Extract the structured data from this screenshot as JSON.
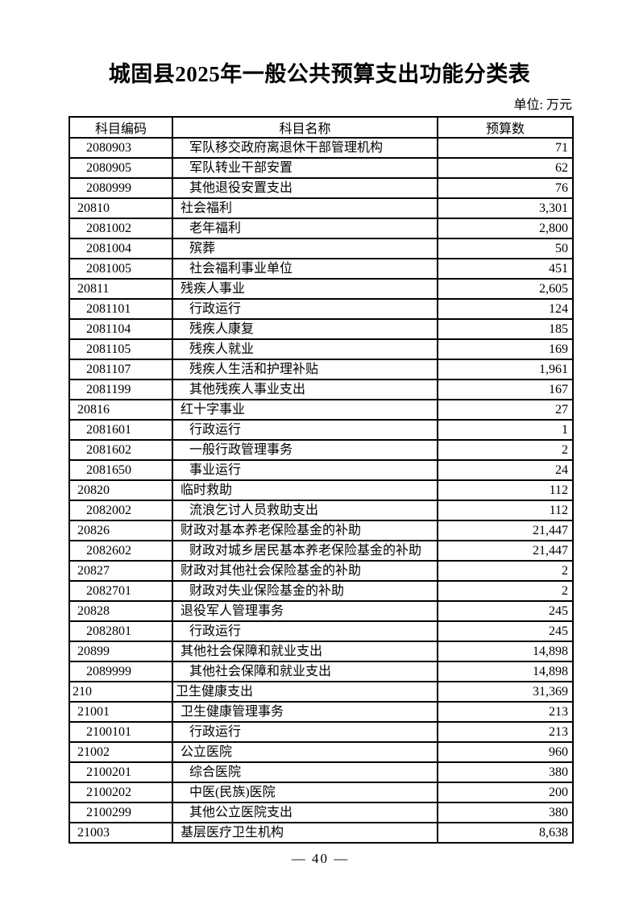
{
  "page": {
    "title": "城固县2025年一般公共预算支出功能分类表",
    "unit_label": "单位: 万元",
    "page_number": "— 40 —"
  },
  "table": {
    "headers": [
      "科目编码",
      "科目名称",
      "预算数"
    ],
    "rows": [
      {
        "code": "2080903",
        "name": "军队移交政府离退休干部管理机构",
        "value": "71",
        "level": 2
      },
      {
        "code": "2080905",
        "name": "军队转业干部安置",
        "value": "62",
        "level": 2
      },
      {
        "code": "2080999",
        "name": "其他退役安置支出",
        "value": "76",
        "level": 2
      },
      {
        "code": "20810",
        "name": "社会福利",
        "value": "3,301",
        "level": 1
      },
      {
        "code": "2081002",
        "name": "老年福利",
        "value": "2,800",
        "level": 2
      },
      {
        "code": "2081004",
        "name": "殡葬",
        "value": "50",
        "level": 2
      },
      {
        "code": "2081005",
        "name": "社会福利事业单位",
        "value": "451",
        "level": 2
      },
      {
        "code": "20811",
        "name": "残疾人事业",
        "value": "2,605",
        "level": 1
      },
      {
        "code": "2081101",
        "name": "行政运行",
        "value": "124",
        "level": 2
      },
      {
        "code": "2081104",
        "name": "残疾人康复",
        "value": "185",
        "level": 2
      },
      {
        "code": "2081105",
        "name": "残疾人就业",
        "value": "169",
        "level": 2
      },
      {
        "code": "2081107",
        "name": "残疾人生活和护理补贴",
        "value": "1,961",
        "level": 2
      },
      {
        "code": "2081199",
        "name": "其他残疾人事业支出",
        "value": "167",
        "level": 2
      },
      {
        "code": "20816",
        "name": "红十字事业",
        "value": "27",
        "level": 1
      },
      {
        "code": "2081601",
        "name": "行政运行",
        "value": "1",
        "level": 2
      },
      {
        "code": "2081602",
        "name": "一般行政管理事务",
        "value": "2",
        "level": 2
      },
      {
        "code": "2081650",
        "name": "事业运行",
        "value": "24",
        "level": 2
      },
      {
        "code": "20820",
        "name": "临时救助",
        "value": "112",
        "level": 1
      },
      {
        "code": "2082002",
        "name": "流浪乞讨人员救助支出",
        "value": "112",
        "level": 2
      },
      {
        "code": "20826",
        "name": "财政对基本养老保险基金的补助",
        "value": "21,447",
        "level": 1
      },
      {
        "code": "2082602",
        "name": "财政对城乡居民基本养老保险基金的补助",
        "value": "21,447",
        "level": 2
      },
      {
        "code": "20827",
        "name": "财政对其他社会保险基金的补助",
        "value": "2",
        "level": 1
      },
      {
        "code": "2082701",
        "name": "财政对失业保险基金的补助",
        "value": "2",
        "level": 2
      },
      {
        "code": "20828",
        "name": "退役军人管理事务",
        "value": "245",
        "level": 1
      },
      {
        "code": "2082801",
        "name": "行政运行",
        "value": "245",
        "level": 2
      },
      {
        "code": "20899",
        "name": "其他社会保障和就业支出",
        "value": "14,898",
        "level": 1
      },
      {
        "code": "2089999",
        "name": "其他社会保障和就业支出",
        "value": "14,898",
        "level": 2
      },
      {
        "code": "210",
        "name": "卫生健康支出",
        "value": "31,369",
        "level": 0
      },
      {
        "code": "21001",
        "name": "卫生健康管理事务",
        "value": "213",
        "level": 1
      },
      {
        "code": "2100101",
        "name": "行政运行",
        "value": "213",
        "level": 2
      },
      {
        "code": "21002",
        "name": "公立医院",
        "value": "960",
        "level": 1
      },
      {
        "code": "2100201",
        "name": "综合医院",
        "value": "380",
        "level": 2
      },
      {
        "code": "2100202",
        "name": "中医(民族)医院",
        "value": "200",
        "level": 2
      },
      {
        "code": "2100299",
        "name": "其他公立医院支出",
        "value": "380",
        "level": 2
      },
      {
        "code": "21003",
        "name": "基层医疗卫生机构",
        "value": "8,638",
        "level": 1
      }
    ]
  }
}
